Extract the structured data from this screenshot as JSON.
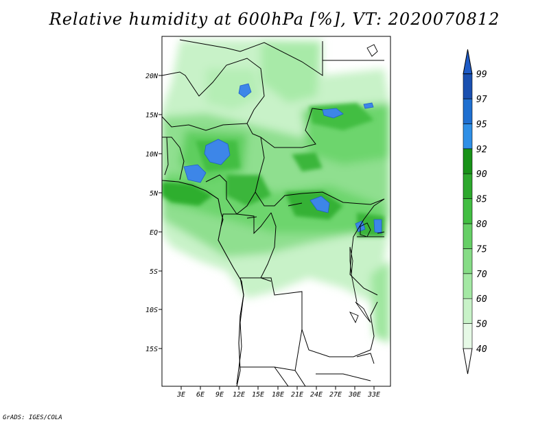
{
  "title": "Relative humidity at 600hPa [%], VT: 2020070812",
  "credit": "GrADS: IGES/COLA",
  "map": {
    "lat_labels": [
      "20N",
      "15N",
      "10N",
      "5N",
      "EQ",
      "5S",
      "10S",
      "15S"
    ],
    "lon_labels": [
      "3E",
      "6E",
      "9E",
      "12E",
      "15E",
      "18E",
      "21E",
      "24E",
      "27E",
      "30E",
      "33E"
    ]
  },
  "colorbar": {
    "levels": [
      "40",
      "50",
      "60",
      "70",
      "75",
      "80",
      "85",
      "90",
      "92",
      "95",
      "97",
      "99"
    ],
    "colors": [
      "#ffffff",
      "#e6f9e6",
      "#c8f2c8",
      "#a4e8a4",
      "#86dc86",
      "#66cf66",
      "#42be42",
      "#2da82d",
      "#189218",
      "#2f8fe6",
      "#1f6fd0",
      "#1a50b0",
      "#1e5bc6"
    ]
  }
}
